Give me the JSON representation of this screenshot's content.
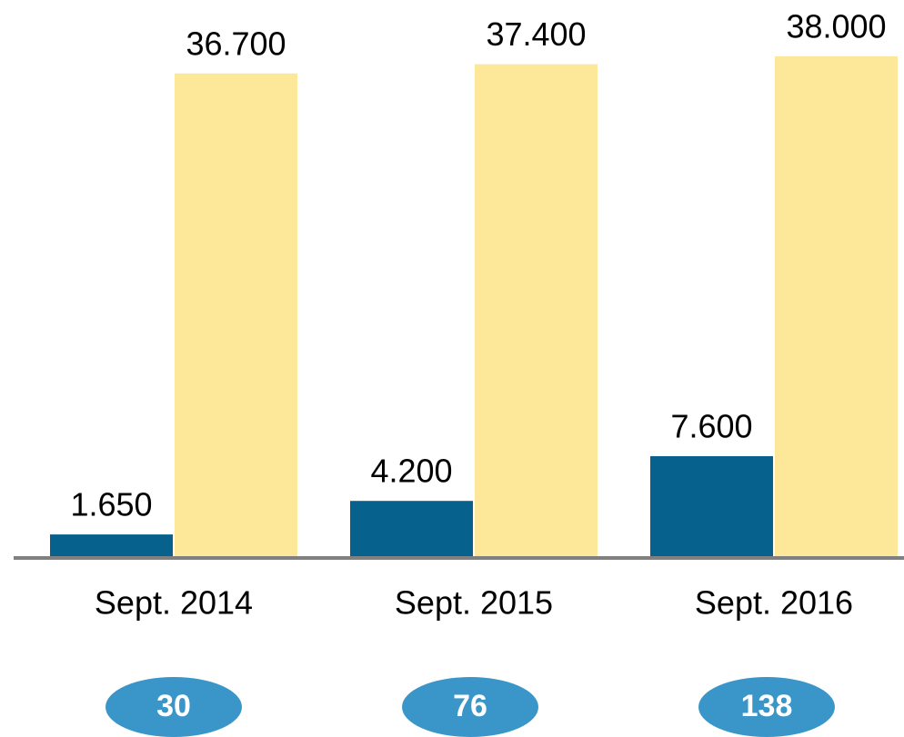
{
  "chart_data": {
    "type": "bar",
    "categories": [
      "Sept. 2014",
      "Sept. 2015",
      "Sept. 2016"
    ],
    "series": [
      {
        "color": "#06618c",
        "values": [
          1650,
          4200,
          7600
        ],
        "value_labels": [
          "1.650",
          "4.200",
          "7.600"
        ]
      },
      {
        "color": "#fde89a",
        "values": [
          36700,
          37400,
          38000
        ],
        "value_labels": [
          "36.700",
          "37.400",
          "38.000"
        ]
      }
    ],
    "ylim": [
      0,
      38000
    ],
    "annotations": [
      30,
      76,
      138
    ],
    "annotation_color": "#3a96c8",
    "axis_color": "#808080"
  }
}
